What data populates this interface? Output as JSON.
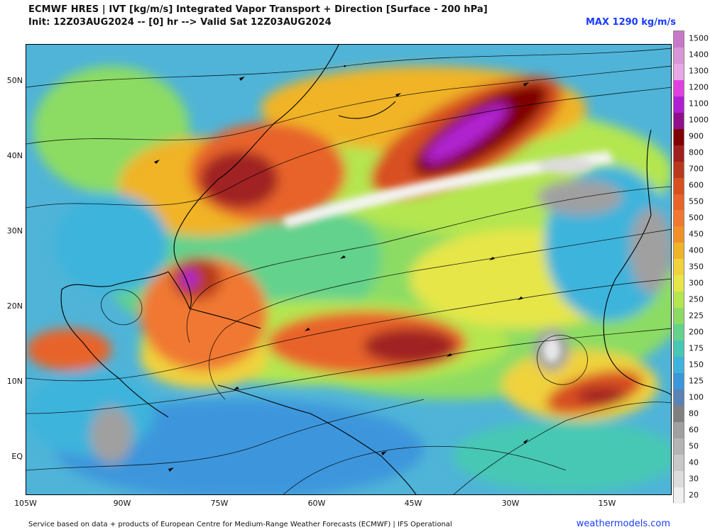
{
  "header": {
    "title_line1": "ECMWF HRES | IVT [kg/m/s] Integrated Vapor Transport + Direction [Surface - 200 hPa]",
    "title_line2": "Init: 12Z03AUG2024 -- [0] hr --> Valid Sat 12Z03AUG2024",
    "max_label": "MAX 1290 kg/m/s"
  },
  "axes": {
    "lat_labels": [
      "50N",
      "40N",
      "30N",
      "20N",
      "10N",
      "EQ"
    ],
    "lon_labels": [
      "105W",
      "90W",
      "75W",
      "60W",
      "45W",
      "30W",
      "15W"
    ]
  },
  "colorbar": {
    "levels": [
      "1500",
      "1400",
      "1300",
      "1200",
      "1100",
      "1000",
      "900",
      "800",
      "700",
      "600",
      "550",
      "500",
      "450",
      "400",
      "350",
      "300",
      "250",
      "225",
      "200",
      "175",
      "150",
      "125",
      "100",
      "80",
      "60",
      "50",
      "40",
      "30",
      "20"
    ],
    "colors": [
      "#c878c8",
      "#d896d8",
      "#e8a8e8",
      "#e040e0",
      "#b020d0",
      "#90108c",
      "#800000",
      "#a02020",
      "#b83a1c",
      "#d85020",
      "#e8642a",
      "#f07832",
      "#f09028",
      "#f0b428",
      "#f0d23c",
      "#e6e64a",
      "#b4e650",
      "#8cdc64",
      "#64d28c",
      "#46c8b4",
      "#3cb4dc",
      "#3c96dc",
      "#5a82b4",
      "#808080",
      "#a0a0a0",
      "#b4b4b4",
      "#c8c8c8",
      "#dcdcdc",
      "#f0f0f0"
    ]
  },
  "footer": {
    "credit": "Service based on data + products of European Centre for Medium-Range Weather Forecasts (ECMWF) | IFS Operational",
    "site": "weathermodels.com"
  }
}
